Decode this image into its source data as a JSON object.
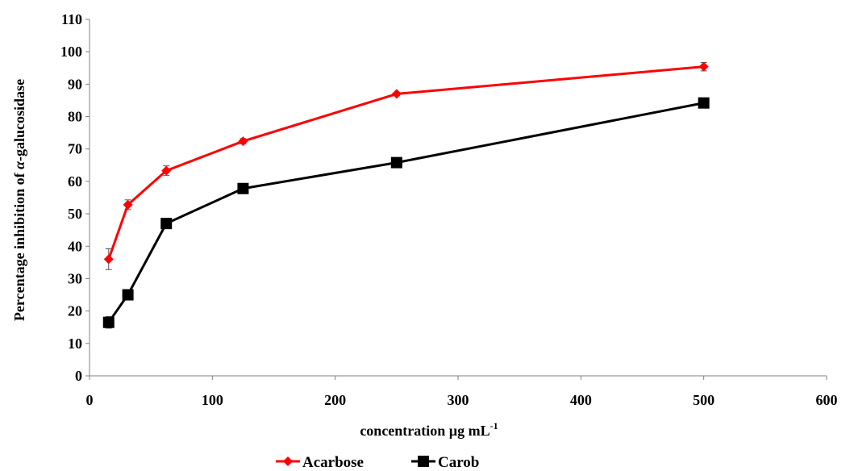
{
  "chart_data": {
    "type": "line",
    "xlabel_main": "concentration µg mL",
    "xlabel_sup": "-1",
    "ylabel_main": "Percentage inhibition of ",
    "ylabel_italic": "α",
    "ylabel_tail": "-galucosidase",
    "xlim": [
      0,
      600
    ],
    "ylim": [
      0,
      110
    ],
    "x_ticks": [
      0,
      100,
      200,
      300,
      400,
      500,
      600
    ],
    "y_ticks": [
      0,
      10,
      20,
      30,
      40,
      50,
      60,
      70,
      80,
      90,
      100,
      110
    ],
    "grid": false,
    "legend_position": "bottom",
    "series": [
      {
        "name": "Acarbose",
        "color": "#ff0000",
        "marker": "diamond",
        "x": [
          15.6,
          31.25,
          62.5,
          125,
          250,
          500
        ],
        "y": [
          36,
          52.8,
          63.3,
          72.4,
          87,
          95.4
        ],
        "error": [
          3.2,
          1.5,
          1.5,
          0.8,
          0.5,
          1.3
        ]
      },
      {
        "name": "Carob",
        "color": "#000000",
        "marker": "square",
        "x": [
          15.6,
          31.25,
          62.5,
          125,
          250,
          500
        ],
        "y": [
          16.5,
          25,
          47,
          57.8,
          65.8,
          84.2
        ],
        "error": [
          1.8,
          0.6,
          0.5,
          1.5,
          0.4,
          0.5
        ]
      }
    ]
  }
}
